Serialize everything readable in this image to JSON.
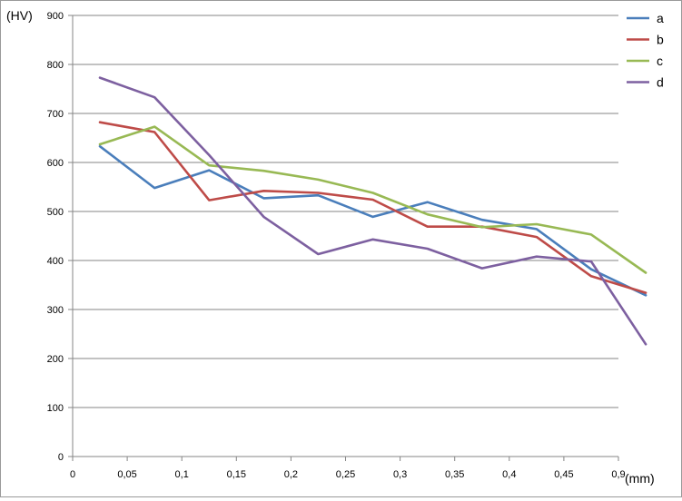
{
  "chart_data": {
    "type": "line",
    "title": "",
    "ylabel": "(HV)",
    "xlabel": "(mm)",
    "x_tick_labels": [
      "0",
      "0,05",
      "0,1",
      "0,15",
      "0,2",
      "0,25",
      "0,3",
      "0,35",
      "0,4",
      "0,45",
      "0,9"
    ],
    "y_ticks": [
      0,
      100,
      200,
      300,
      400,
      500,
      600,
      700,
      800,
      900
    ],
    "ylim": [
      0,
      900
    ],
    "grid": "horizontal",
    "legend_position": "right",
    "series": [
      {
        "name": "a",
        "color": "#4a7ebb",
        "values": [
          633,
          548,
          584,
          527,
          533,
          489,
          519,
          483,
          464,
          382,
          329
        ]
      },
      {
        "name": "b",
        "color": "#be4b48",
        "values": [
          682,
          662,
          523,
          542,
          538,
          524,
          469,
          469,
          448,
          368,
          334
        ]
      },
      {
        "name": "c",
        "color": "#98b954",
        "values": [
          637,
          673,
          594,
          583,
          565,
          538,
          494,
          468,
          474,
          453,
          375
        ]
      },
      {
        "name": "d",
        "color": "#7d60a0",
        "values": [
          773,
          733,
          615,
          489,
          413,
          443,
          424,
          384,
          408,
          398,
          229
        ]
      }
    ]
  }
}
